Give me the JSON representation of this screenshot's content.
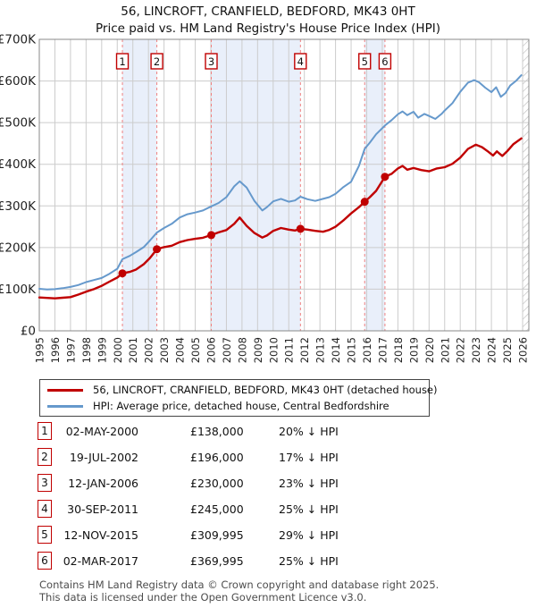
{
  "chart_data": {
    "type": "line",
    "title": "56, LINCROFT, CRANFIELD, BEDFORD, MK43 0HT",
    "subtitle": "Price paid vs. HM Land Registry's House Price Index (HPI)",
    "xlabel": "",
    "ylabel": "",
    "xlim": [
      1995,
      2026.4
    ],
    "ylim": [
      0,
      700000
    ],
    "grid": true,
    "legend_position": "below",
    "xticks": [
      1995,
      1996,
      1997,
      1998,
      1999,
      2000,
      2001,
      2002,
      2003,
      2004,
      2005,
      2006,
      2007,
      2008,
      2009,
      2010,
      2011,
      2012,
      2013,
      2014,
      2015,
      2016,
      2017,
      2018,
      2019,
      2020,
      2021,
      2022,
      2023,
      2024,
      2025,
      2026
    ],
    "yticks": [
      {
        "value": 0,
        "label": "£0"
      },
      {
        "value": 100000,
        "label": "£100K"
      },
      {
        "value": 200000,
        "label": "£200K"
      },
      {
        "value": 300000,
        "label": "£300K"
      },
      {
        "value": 400000,
        "label": "£400K"
      },
      {
        "value": 500000,
        "label": "£500K"
      },
      {
        "value": 600000,
        "label": "£600K"
      },
      {
        "value": 700000,
        "label": "£700K"
      }
    ],
    "colors": {
      "property_line": "#c00000",
      "hpi_line": "#6699cc",
      "sale_dashed": "#f08080",
      "band": "#e9effa",
      "grid": "#cccccc",
      "axis": "#888888",
      "hatch": "#b8b8b8",
      "marker_box": "#c00000"
    },
    "series": [
      {
        "name": "56, LINCROFT, CRANFIELD, BEDFORD, MK43 0HT (detached house)",
        "color": "#c00000",
        "points": [
          [
            1995,
            80000
          ],
          [
            1995.5,
            79000
          ],
          [
            1996,
            78000
          ],
          [
            1996.5,
            79500
          ],
          [
            1997,
            81000
          ],
          [
            1997.5,
            87000
          ],
          [
            1998,
            94000
          ],
          [
            1998.5,
            100000
          ],
          [
            1999,
            108000
          ],
          [
            1999.5,
            118000
          ],
          [
            2000,
            128000
          ],
          [
            2000.33,
            138000
          ],
          [
            2000.8,
            141500
          ],
          [
            2001.2,
            147000
          ],
          [
            2001.7,
            160000
          ],
          [
            2002.1,
            175000
          ],
          [
            2002.54,
            196000
          ],
          [
            2003,
            201000
          ],
          [
            2003.5,
            204500
          ],
          [
            2004,
            213000
          ],
          [
            2004.5,
            218000
          ],
          [
            2005,
            221000
          ],
          [
            2005.5,
            223500
          ],
          [
            2006.03,
            230000
          ],
          [
            2006.5,
            236500
          ],
          [
            2007,
            242000
          ],
          [
            2007.5,
            257000
          ],
          [
            2007.85,
            272000
          ],
          [
            2008.3,
            252000
          ],
          [
            2008.8,
            235000
          ],
          [
            2009.3,
            224000
          ],
          [
            2009.6,
            229000
          ],
          [
            2010,
            240000
          ],
          [
            2010.5,
            247000
          ],
          [
            2011,
            243000
          ],
          [
            2011.4,
            241000
          ],
          [
            2011.75,
            245000
          ],
          [
            2012.2,
            243000
          ],
          [
            2012.7,
            240000
          ],
          [
            2013.2,
            238000
          ],
          [
            2013.6,
            242500
          ],
          [
            2014,
            250000
          ],
          [
            2014.5,
            265000
          ],
          [
            2015,
            282000
          ],
          [
            2015.5,
            297000
          ],
          [
            2015.87,
            309995
          ],
          [
            2016.2,
            321000
          ],
          [
            2016.6,
            336000
          ],
          [
            2017.17,
            369995
          ],
          [
            2017.6,
            377000
          ],
          [
            2018,
            390000
          ],
          [
            2018.3,
            396000
          ],
          [
            2018.6,
            387000
          ],
          [
            2019,
            391000
          ],
          [
            2019.5,
            386000
          ],
          [
            2020,
            383000
          ],
          [
            2020.5,
            390000
          ],
          [
            2021,
            393000
          ],
          [
            2021.5,
            401000
          ],
          [
            2022,
            416000
          ],
          [
            2022.5,
            437000
          ],
          [
            2023,
            447000
          ],
          [
            2023.4,
            441000
          ],
          [
            2023.8,
            430000
          ],
          [
            2024.1,
            421000
          ],
          [
            2024.35,
            431000
          ],
          [
            2024.7,
            420000
          ],
          [
            2025,
            431000
          ],
          [
            2025.4,
            448000
          ],
          [
            2025.92,
            462000
          ]
        ]
      },
      {
        "name": "HPI: Average price, detached house, Central Bedfordshire",
        "color": "#6699cc",
        "points": [
          [
            1995,
            101000
          ],
          [
            1995.5,
            99500
          ],
          [
            1996,
            100000
          ],
          [
            1996.5,
            102500
          ],
          [
            1997,
            105500
          ],
          [
            1997.5,
            110000
          ],
          [
            1998,
            117000
          ],
          [
            1998.5,
            122000
          ],
          [
            1999,
            127000
          ],
          [
            1999.5,
            137000
          ],
          [
            2000,
            149000
          ],
          [
            2000.33,
            172000
          ],
          [
            2000.8,
            180000
          ],
          [
            2001.2,
            189000
          ],
          [
            2001.7,
            201000
          ],
          [
            2002.1,
            217000
          ],
          [
            2002.54,
            236000
          ],
          [
            2003,
            247000
          ],
          [
            2003.5,
            257000
          ],
          [
            2004,
            272000
          ],
          [
            2004.5,
            280000
          ],
          [
            2005,
            284000
          ],
          [
            2005.5,
            289000
          ],
          [
            2006.03,
            299000
          ],
          [
            2006.5,
            307000
          ],
          [
            2007,
            321000
          ],
          [
            2007.5,
            347000
          ],
          [
            2007.85,
            359000
          ],
          [
            2008.3,
            344000
          ],
          [
            2008.8,
            312000
          ],
          [
            2009.3,
            289000
          ],
          [
            2009.6,
            297000
          ],
          [
            2010,
            311000
          ],
          [
            2010.5,
            317000
          ],
          [
            2011,
            310000
          ],
          [
            2011.4,
            313000
          ],
          [
            2011.75,
            322000
          ],
          [
            2012.2,
            316000
          ],
          [
            2012.7,
            312000
          ],
          [
            2013.2,
            317000
          ],
          [
            2013.6,
            321000
          ],
          [
            2014,
            329000
          ],
          [
            2014.5,
            345000
          ],
          [
            2015,
            358000
          ],
          [
            2015.5,
            396000
          ],
          [
            2015.87,
            437000
          ],
          [
            2016.2,
            452000
          ],
          [
            2016.6,
            472000
          ],
          [
            2017.17,
            493000
          ],
          [
            2017.6,
            506000
          ],
          [
            2018,
            520000
          ],
          [
            2018.3,
            527000
          ],
          [
            2018.6,
            518000
          ],
          [
            2019,
            526000
          ],
          [
            2019.3,
            512000
          ],
          [
            2019.7,
            521000
          ],
          [
            2020,
            516000
          ],
          [
            2020.4,
            509000
          ],
          [
            2020.8,
            521000
          ],
          [
            2021,
            529000
          ],
          [
            2021.5,
            547000
          ],
          [
            2022,
            574000
          ],
          [
            2022.5,
            596000
          ],
          [
            2022.9,
            602000
          ],
          [
            2023.2,
            597000
          ],
          [
            2023.6,
            584000
          ],
          [
            2024,
            573000
          ],
          [
            2024.3,
            585000
          ],
          [
            2024.6,
            562000
          ],
          [
            2024.9,
            571000
          ],
          [
            2025.2,
            589000
          ],
          [
            2025.6,
            601000
          ],
          [
            2025.92,
            614000
          ]
        ]
      }
    ],
    "sales": [
      {
        "num": "1",
        "year": 2000.33,
        "price": 138000
      },
      {
        "num": "2",
        "year": 2002.54,
        "price": 196000
      },
      {
        "num": "3",
        "year": 2006.03,
        "price": 230000
      },
      {
        "num": "4",
        "year": 2011.75,
        "price": 245000
      },
      {
        "num": "5",
        "year": 2015.87,
        "price": 309995
      },
      {
        "num": "6",
        "year": 2017.17,
        "price": 369995
      }
    ],
    "ownership_bands": [
      [
        2000.33,
        2002.54
      ],
      [
        2006.03,
        2011.75
      ],
      [
        2015.87,
        2017.17
      ]
    ],
    "future_start": 2026.0
  },
  "table": {
    "rows": [
      {
        "num": "1",
        "date": "02-MAY-2000",
        "price": "£138,000",
        "hpi": "20% ↓ HPI"
      },
      {
        "num": "2",
        "date": "19-JUL-2002",
        "price": "£196,000",
        "hpi": "17% ↓ HPI"
      },
      {
        "num": "3",
        "date": "12-JAN-2006",
        "price": "£230,000",
        "hpi": "23% ↓ HPI"
      },
      {
        "num": "4",
        "date": "30-SEP-2011",
        "price": "£245,000",
        "hpi": "25% ↓ HPI"
      },
      {
        "num": "5",
        "date": "12-NOV-2015",
        "price": "£309,995",
        "hpi": "29% ↓ HPI"
      },
      {
        "num": "6",
        "date": "02-MAR-2017",
        "price": "£369,995",
        "hpi": "25% ↓ HPI"
      }
    ]
  },
  "footer": {
    "line1": "Contains HM Land Registry data © Crown copyright and database right 2025.",
    "line2": "This data is licensed under the Open Government Licence v3.0."
  }
}
